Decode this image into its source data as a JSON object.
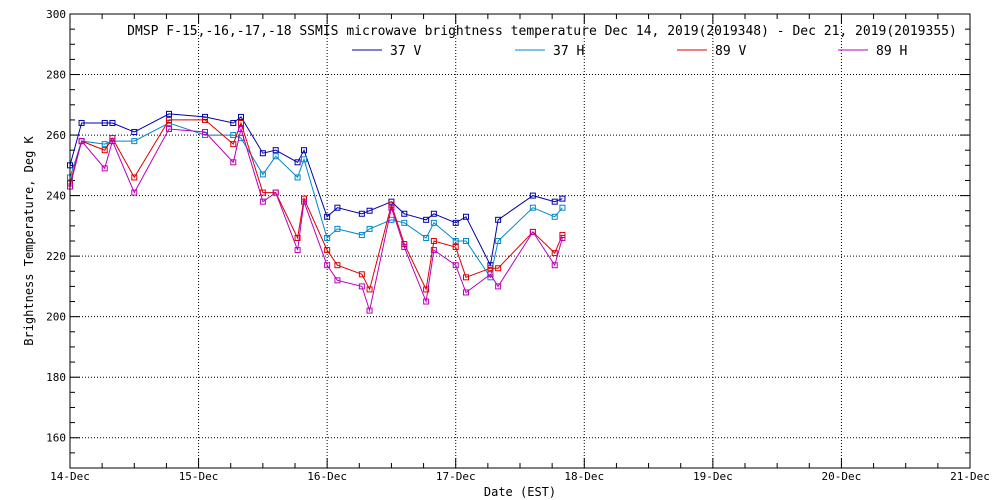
{
  "chart_data": {
    "type": "line",
    "title": "DMSP F-15,-16,-17,-18 SSMIS microwave brightness temperature Dec 14, 2019(2019348) - Dec 21, 2019(2019355)",
    "xlabel": "Date (EST)",
    "ylabel": "Brightness Temperature, Deg K",
    "xlim": [
      0,
      7
    ],
    "ylim": [
      150,
      300
    ],
    "x_tick_values": [
      0,
      1,
      2,
      3,
      4,
      5,
      6,
      7
    ],
    "x_tick_labels": [
      "14-Dec",
      "15-Dec",
      "16-Dec",
      "17-Dec",
      "18-Dec",
      "19-Dec",
      "20-Dec",
      "21-Dec"
    ],
    "y_ticks": [
      160,
      180,
      200,
      220,
      240,
      260,
      280,
      300
    ],
    "grid": true,
    "legend_position": "top-center",
    "series": [
      {
        "name": "37 V",
        "color": "#0000aa",
        "x": [
          0.0,
          0.09,
          0.27,
          0.33,
          0.5,
          0.77,
          1.05,
          1.27,
          1.33,
          1.5,
          1.6,
          1.77,
          1.82,
          2.0,
          2.08,
          2.27,
          2.33,
          2.5,
          2.6,
          2.77,
          2.83,
          3.0,
          3.08,
          3.27,
          3.33,
          3.6,
          3.77,
          3.83
        ],
        "y": [
          250,
          264,
          264,
          264,
          261,
          267,
          266,
          264,
          266,
          254,
          255,
          251,
          255,
          233,
          236,
          234,
          235,
          238,
          234,
          232,
          234,
          231,
          233,
          217,
          232,
          240,
          238,
          239
        ]
      },
      {
        "name": "37 H",
        "color": "#0088cc",
        "x": [
          0.0,
          0.09,
          0.27,
          0.33,
          0.5,
          0.77,
          1.05,
          1.27,
          1.33,
          1.5,
          1.6,
          1.77,
          1.82,
          2.0,
          2.08,
          2.27,
          2.33,
          2.5,
          2.6,
          2.77,
          2.83,
          3.0,
          3.08,
          3.27,
          3.33,
          3.6,
          3.77,
          3.83
        ],
        "y": [
          246,
          258,
          257,
          258,
          258,
          264,
          260,
          260,
          259,
          247,
          253,
          246,
          252,
          226,
          229,
          227,
          229,
          232,
          231,
          226,
          231,
          225,
          225,
          213,
          225,
          236,
          233,
          236
        ]
      },
      {
        "name": "89 V",
        "color": "#dd0000",
        "x": [
          0.0,
          0.09,
          0.27,
          0.33,
          0.5,
          0.77,
          1.05,
          1.27,
          1.33,
          1.5,
          1.6,
          1.77,
          1.82,
          2.0,
          2.08,
          2.27,
          2.33,
          2.5,
          2.6,
          2.77,
          2.83,
          3.0,
          3.08,
          3.27,
          3.33,
          3.6,
          3.77,
          3.83
        ],
        "y": [
          244,
          258,
          255,
          259,
          246,
          265,
          265,
          257,
          264,
          241,
          241,
          226,
          239,
          222,
          217,
          214,
          209,
          237,
          224,
          209,
          225,
          223,
          213,
          216,
          216,
          228,
          221,
          227
        ]
      },
      {
        "name": "89 H",
        "color": "#bb00bb",
        "x": [
          0.0,
          0.09,
          0.27,
          0.33,
          0.5,
          0.77,
          1.05,
          1.27,
          1.33,
          1.5,
          1.6,
          1.77,
          1.82,
          2.0,
          2.08,
          2.27,
          2.33,
          2.5,
          2.6,
          2.77,
          2.83,
          3.0,
          3.08,
          3.27,
          3.33,
          3.6,
          3.77,
          3.83
        ],
        "y": [
          243,
          258,
          249,
          258,
          241,
          262,
          261,
          251,
          262,
          238,
          241,
          222,
          238,
          217,
          212,
          210,
          202,
          236,
          223,
          205,
          222,
          217,
          208,
          214,
          210,
          228,
          217,
          226
        ]
      }
    ]
  }
}
